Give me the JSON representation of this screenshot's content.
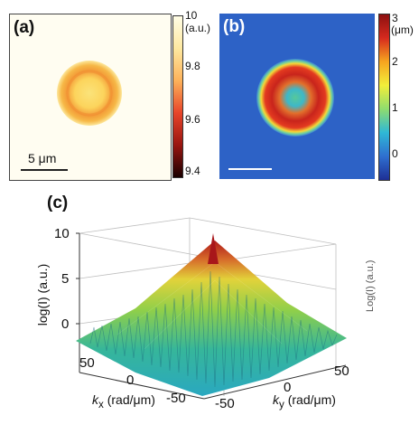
{
  "panel_a": {
    "label": "(a)",
    "scale_bar_label": "5 μm",
    "colorbar": {
      "unit": "(a.u.)",
      "ticks": [
        "10",
        "9.8",
        "9.6",
        "9.4"
      ],
      "colors": [
        "#fffde6",
        "#fde8a0",
        "#fdb25a",
        "#e8452a",
        "#9a1510",
        "#1a0000"
      ]
    }
  },
  "panel_b": {
    "label": "(b)",
    "colorbar": {
      "unit": "(μm)",
      "ticks": [
        "3",
        "2",
        "1",
        "0"
      ],
      "colors": [
        "#8c1010",
        "#d62a1e",
        "#f6a51f",
        "#f2ee3a",
        "#8fdc6e",
        "#2fb8d6",
        "#2f6fd0",
        "#1e2f95"
      ]
    }
  },
  "panel_c": {
    "label": "(c)",
    "z_axis_label": "log(I) (a.u.)",
    "z_ticks": [
      "10",
      "5",
      "0"
    ],
    "kx_label_main": "k",
    "kx_label_sub": "x",
    "kx_label_unit": " (rad/μm)",
    "ky_label_main": "k",
    "ky_label_sub": "y",
    "ky_label_unit": " (rad/μm)",
    "kx_ticks": [
      "50",
      "0",
      "-50"
    ],
    "ky_ticks": [
      "-50",
      "0",
      "50"
    ]
  },
  "side_fragment": "Log(I) (a.u.)"
}
